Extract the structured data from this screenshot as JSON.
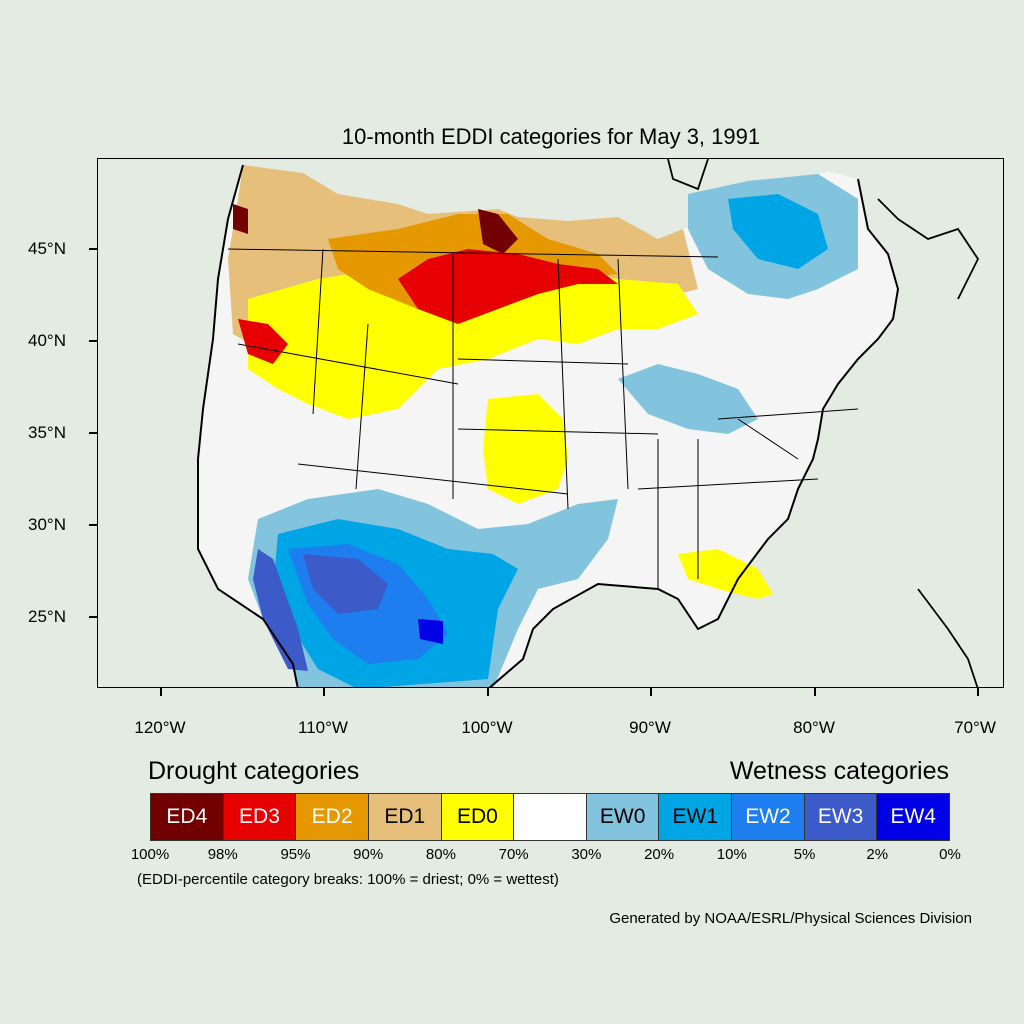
{
  "title": "10-month EDDI categories for May 3, 1991",
  "lat_labels": [
    "45°N",
    "40°N",
    "35°N",
    "30°N",
    "25°N"
  ],
  "lon_labels": [
    "120°W",
    "110°W",
    "100°W",
    "90°W",
    "80°W",
    "70°W"
  ],
  "legend": {
    "drought_heading": "Drought categories",
    "wetness_heading": "Wetness categories",
    "categories": [
      {
        "label": "ED4",
        "color": "#730000",
        "text_color": "#ffffff"
      },
      {
        "label": "ED3",
        "color": "#e60000",
        "text_color": "#ffffff"
      },
      {
        "label": "ED2",
        "color": "#e69800",
        "text_color": "#ffffff"
      },
      {
        "label": "ED1",
        "color": "#e6c07a",
        "text_color": "#000000"
      },
      {
        "label": "ED0",
        "color": "#ffff00",
        "text_color": "#000000"
      },
      {
        "label": "",
        "color": "#ffffff",
        "text_color": "#000000"
      },
      {
        "label": "EW0",
        "color": "#82c3de",
        "text_color": "#000000"
      },
      {
        "label": "EW1",
        "color": "#00a5e6",
        "text_color": "#000000"
      },
      {
        "label": "EW2",
        "color": "#1e7ef0",
        "text_color": "#ffffff"
      },
      {
        "label": "EW3",
        "color": "#3c5ac8",
        "text_color": "#ffffff"
      },
      {
        "label": "EW4",
        "color": "#0000e6",
        "text_color": "#ffffff"
      }
    ],
    "breaks": [
      "100%",
      "98%",
      "95%",
      "90%",
      "80%",
      "70%",
      "30%",
      "20%",
      "10%",
      "5%",
      "2%",
      "0%"
    ]
  },
  "note": "(EDDI-percentile category breaks: 100% = driest; 0% = wettest)",
  "credit": "Generated by NOAA/ESRL/Physical Sciences Division"
}
